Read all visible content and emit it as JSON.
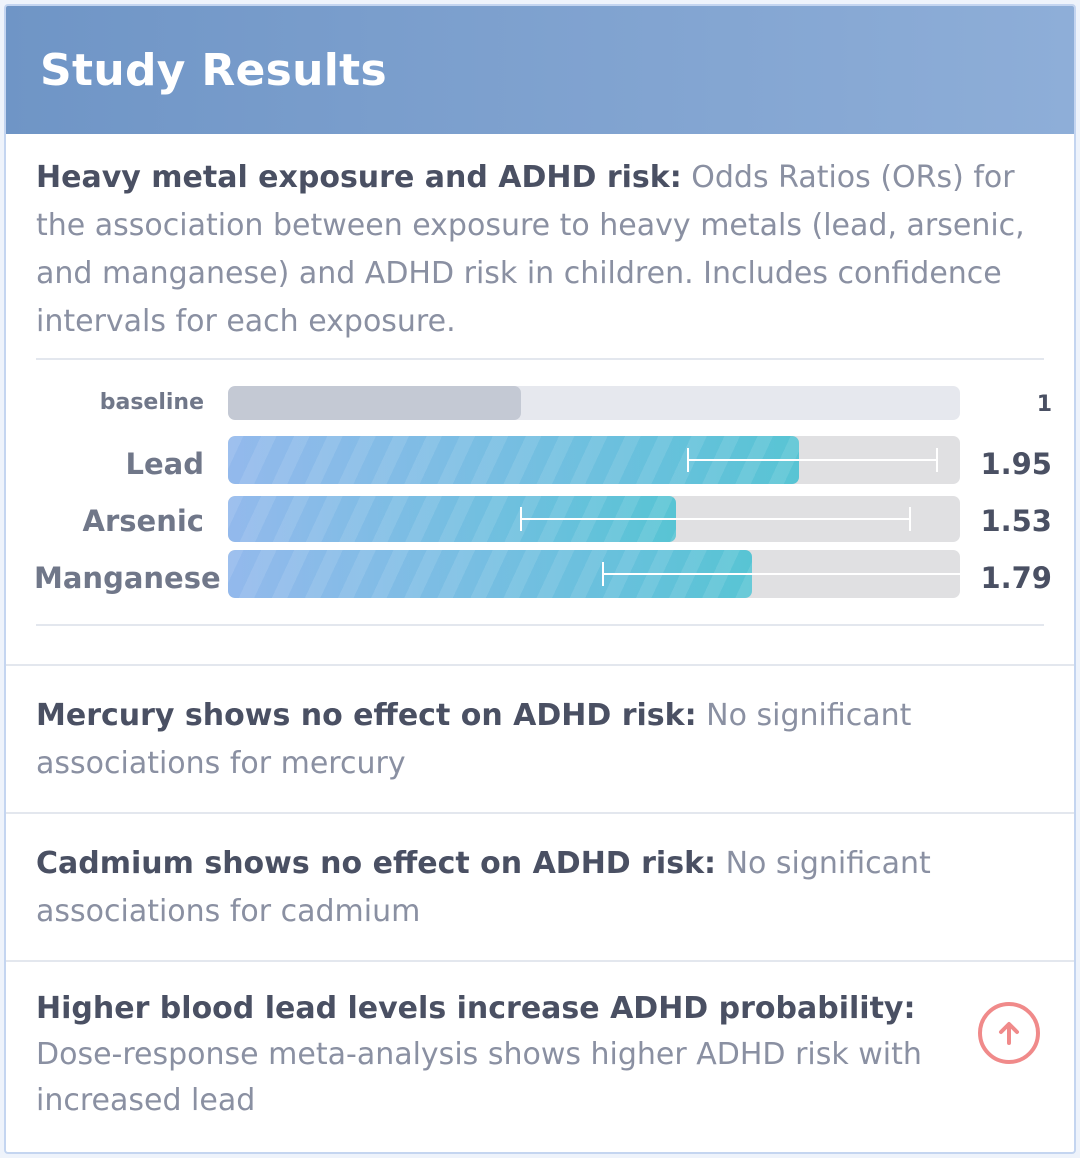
{
  "header": {
    "title": "Study Results"
  },
  "sections": [
    {
      "heading": "Heavy metal exposure and ADHD risk:",
      "text": " Odds Ratios (ORs) for the association between exposure to heavy metals (lead, arsenic, and manganese) and ADHD risk in children. Includes confidence intervals for each exposure."
    },
    {
      "heading": "Mercury shows no effect on ADHD risk:",
      "text": " No significant associations for mercury"
    },
    {
      "heading": "Cadmium shows no effect on ADHD risk:",
      "text": " No significant associations for cadmium"
    },
    {
      "heading": "Higher blood lead levels increase ADHD probability:",
      "text": " Dose-response meta-analysis shows higher ADHD risk with increased lead"
    }
  ],
  "chart_data": {
    "type": "bar",
    "orientation": "horizontal",
    "categories": [
      "baseline",
      "Lead",
      "Arsenic",
      "Manganese"
    ],
    "values": [
      1,
      1.95,
      1.53,
      1.79
    ],
    "value_labels": [
      "1",
      "1.95",
      "1.53",
      "1.79"
    ],
    "xlim": [
      0,
      2.5
    ],
    "confidence_intervals": [
      null,
      [
        1.57,
        2.42
      ],
      [
        1.0,
        2.33
      ],
      [
        1.28,
        2.5
      ]
    ],
    "colors": {
      "baseline": "#c4c9d4",
      "bar_start": "#93b9ec",
      "bar_end": "#58c4d4",
      "track": "#e0e0e2"
    }
  },
  "scroll_up_button": {
    "icon": "arrow-up-circle-icon",
    "color": "#f08a8a"
  }
}
